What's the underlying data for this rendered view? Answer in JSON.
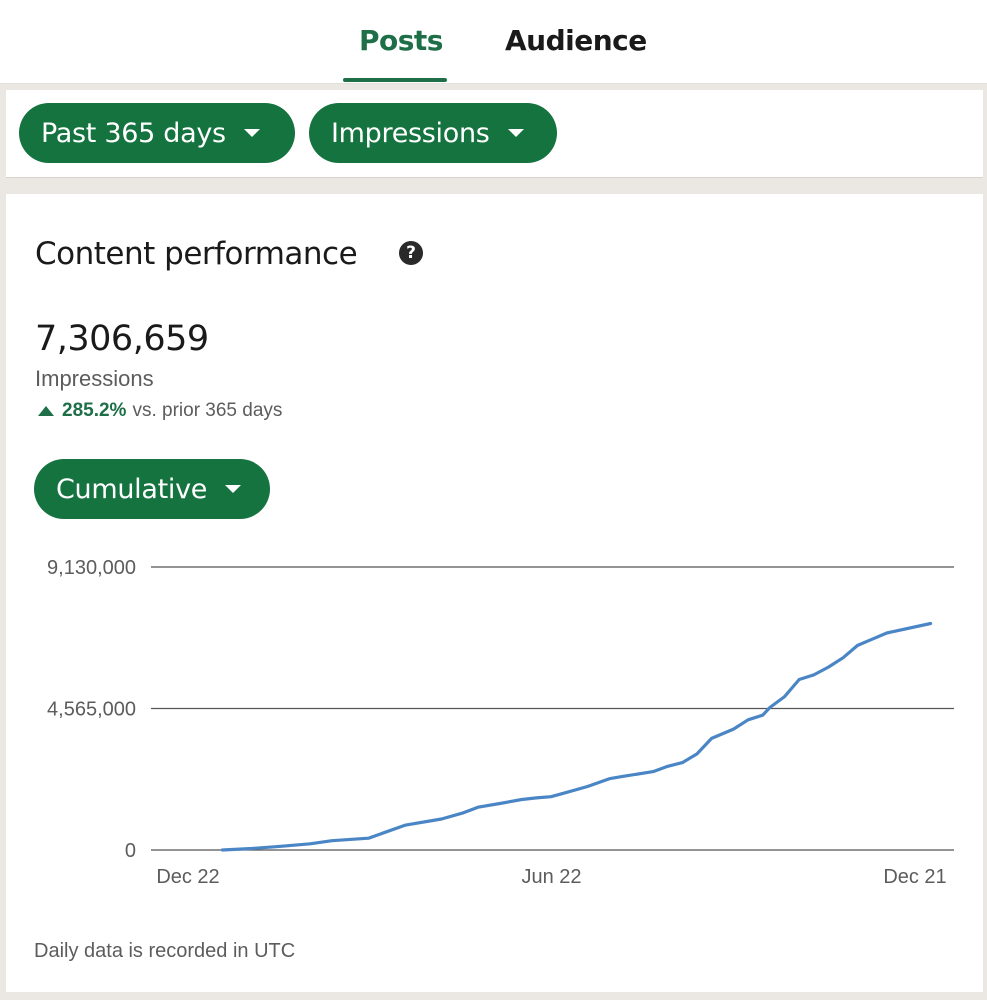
{
  "tabs": [
    {
      "label": "Posts",
      "active": true
    },
    {
      "label": "Audience",
      "active": false
    }
  ],
  "filters": {
    "period": "Past 365 days",
    "metric": "Impressions"
  },
  "card": {
    "title": "Content performance",
    "help_symbol": "?",
    "total": "7,306,659",
    "metric_label": "Impressions",
    "change_pct": "285.2%",
    "change_text": "vs. prior 365 days",
    "mode": "Cumulative",
    "footnote": "Daily data is recorded in UTC"
  },
  "colors": {
    "accent": "#14733f",
    "line": "#4a86c5"
  },
  "chart_data": {
    "type": "line",
    "y_ticks": [
      "9,130,000",
      "4,565,000",
      "0"
    ],
    "ylim": [
      0,
      9130000
    ],
    "x_ticks": [
      "Dec 22",
      "Jun 22",
      "Dec 21"
    ],
    "x_tick_positions": [
      0.0,
      0.5,
      1.0
    ],
    "series": [
      {
        "x": [
          0.05,
          0.09,
          0.13,
          0.17,
          0.2,
          0.25,
          0.3,
          0.35,
          0.38,
          0.4,
          0.43,
          0.46,
          0.48,
          0.5,
          0.52,
          0.55,
          0.58,
          0.6,
          0.64,
          0.66,
          0.68,
          0.7,
          0.72,
          0.75,
          0.77,
          0.79,
          0.8,
          0.82,
          0.84,
          0.86,
          0.88,
          0.9,
          0.92,
          0.94,
          0.96,
          1.02
        ],
        "y": [
          0,
          50000,
          120000,
          200000,
          300000,
          380000,
          800000,
          1000000,
          1200000,
          1380000,
          1500000,
          1630000,
          1680000,
          1720000,
          1850000,
          2050000,
          2300000,
          2380000,
          2530000,
          2700000,
          2820000,
          3100000,
          3600000,
          3900000,
          4200000,
          4350000,
          4600000,
          4950000,
          5500000,
          5650000,
          5900000,
          6200000,
          6600000,
          6800000,
          7000000,
          7306659
        ]
      }
    ]
  }
}
